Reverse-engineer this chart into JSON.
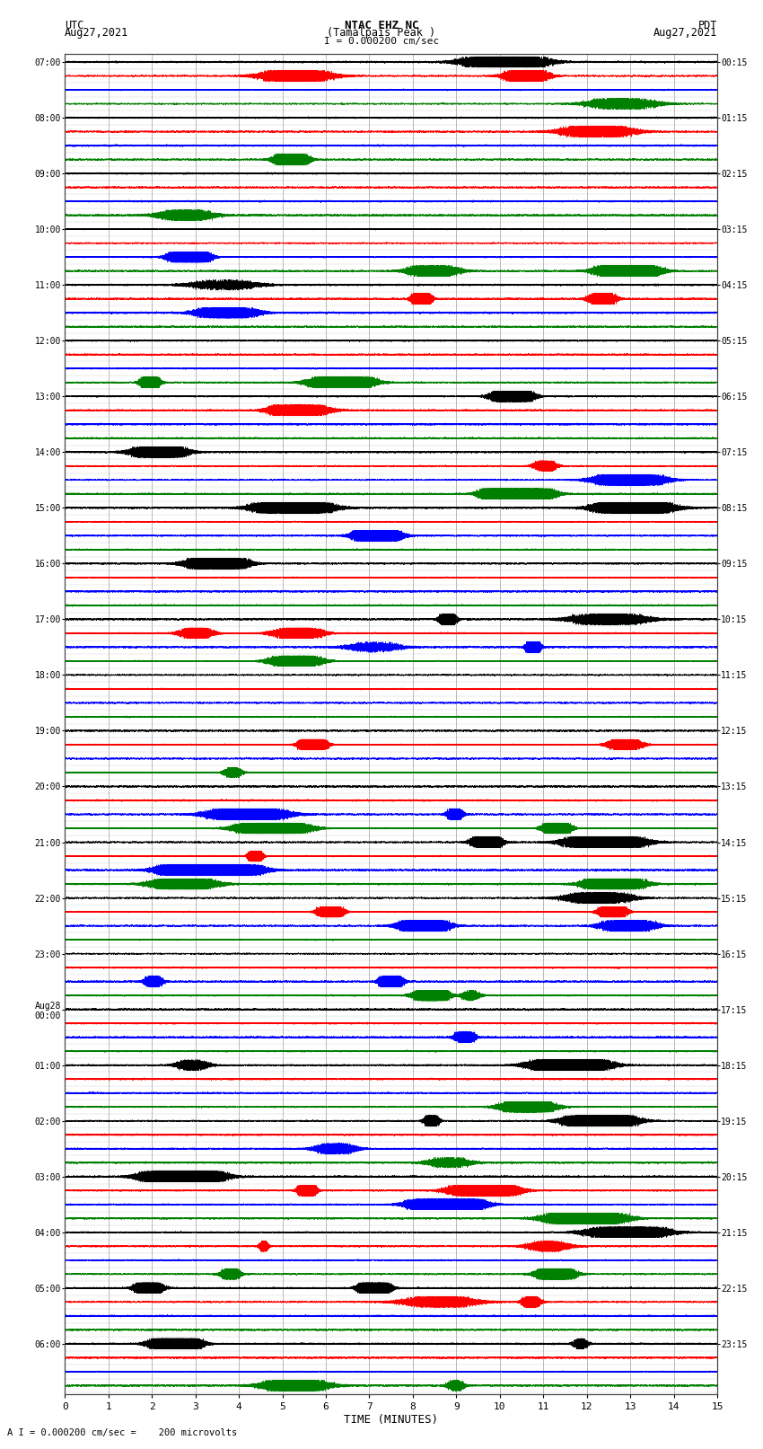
{
  "title_line1": "NTAC EHZ NC",
  "title_line2": "(Tamalpais Peak )",
  "title_line3": "I = 0.000200 cm/sec",
  "left_label_line1": "UTC",
  "left_label_line2": "Aug27,2021",
  "right_label_line1": "PDT",
  "right_label_line2": "Aug27,2021",
  "bottom_label": "TIME (MINUTES)",
  "bottom_note": "A I = 0.000200 cm/sec =    200 microvolts",
  "xlabel_ticks": [
    0,
    1,
    2,
    3,
    4,
    5,
    6,
    7,
    8,
    9,
    10,
    11,
    12,
    13,
    14,
    15
  ],
  "row_colors": [
    "black",
    "red",
    "blue",
    "green"
  ],
  "utc_times": [
    "07:00",
    "",
    "",
    "",
    "08:00",
    "",
    "",
    "",
    "09:00",
    "",
    "",
    "",
    "10:00",
    "",
    "",
    "",
    "11:00",
    "",
    "",
    "",
    "12:00",
    "",
    "",
    "",
    "13:00",
    "",
    "",
    "",
    "14:00",
    "",
    "",
    "",
    "15:00",
    "",
    "",
    "",
    "16:00",
    "",
    "",
    "",
    "17:00",
    "",
    "",
    "",
    "18:00",
    "",
    "",
    "",
    "19:00",
    "",
    "",
    "",
    "20:00",
    "",
    "",
    "",
    "21:00",
    "",
    "",
    "",
    "22:00",
    "",
    "",
    "",
    "23:00",
    "",
    "",
    "",
    "Aug28\n00:00",
    "",
    "",
    "",
    "01:00",
    "",
    "",
    "",
    "02:00",
    "",
    "",
    "",
    "03:00",
    "",
    "",
    "",
    "04:00",
    "",
    "",
    "",
    "05:00",
    "",
    "",
    "",
    "06:00",
    "",
    "",
    ""
  ],
  "pdt_times": [
    "00:15",
    "",
    "",
    "",
    "01:15",
    "",
    "",
    "",
    "02:15",
    "",
    "",
    "",
    "03:15",
    "",
    "",
    "",
    "04:15",
    "",
    "",
    "",
    "05:15",
    "",
    "",
    "",
    "06:15",
    "",
    "",
    "",
    "07:15",
    "",
    "",
    "",
    "08:15",
    "",
    "",
    "",
    "09:15",
    "",
    "",
    "",
    "10:15",
    "",
    "",
    "",
    "11:15",
    "",
    "",
    "",
    "12:15",
    "",
    "",
    "",
    "13:15",
    "",
    "",
    "",
    "14:15",
    "",
    "",
    "",
    "15:15",
    "",
    "",
    "",
    "16:15",
    "",
    "",
    "",
    "17:15",
    "",
    "",
    "",
    "18:15",
    "",
    "",
    "",
    "19:15",
    "",
    "",
    "",
    "20:15",
    "",
    "",
    "",
    "21:15",
    "",
    "",
    "",
    "22:15",
    "",
    "",
    "",
    "23:15",
    "",
    "",
    ""
  ],
  "n_rows": 96,
  "n_minutes": 15,
  "sample_rate": 50,
  "background_color": "white",
  "grid_color": "#888888",
  "trace_amplitude": 0.38,
  "noise_base": 0.018,
  "fig_width": 8.5,
  "fig_height": 16.13
}
